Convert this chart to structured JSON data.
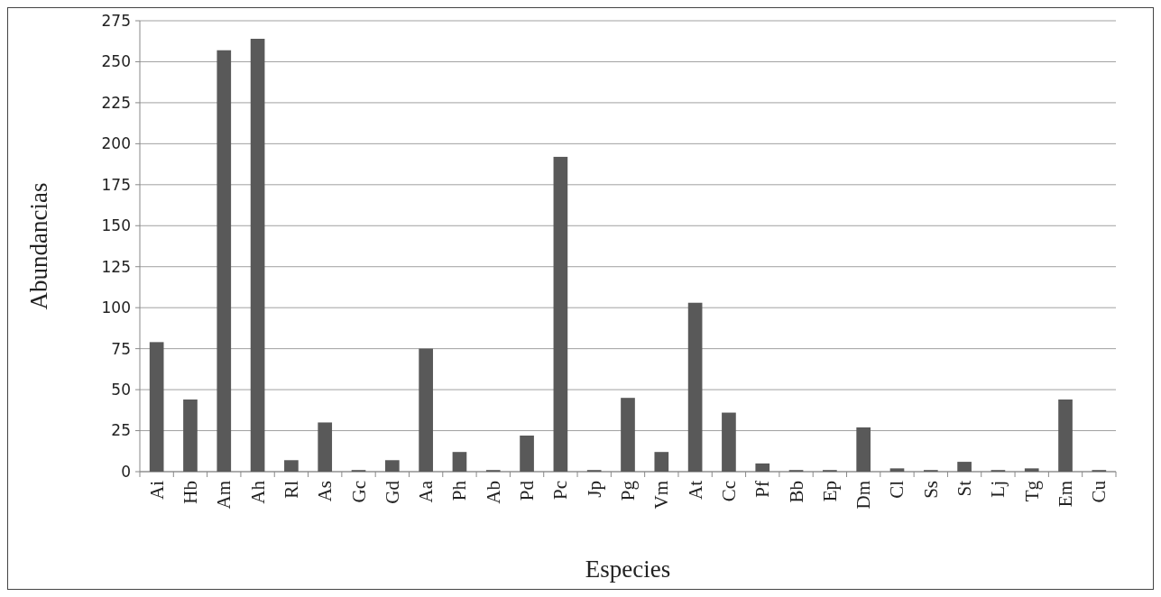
{
  "chart_data": {
    "type": "bar",
    "xlabel": "Especies",
    "ylabel": "Abundancias",
    "categories": [
      "Ai",
      "Hb",
      "Am",
      "Ah",
      "Rl",
      "As",
      "Gc",
      "Gd",
      "Aa",
      "Ph",
      "Ab",
      "Pd",
      "Pc",
      "Jp",
      "Pg",
      "Vm",
      "At",
      "Cc",
      "Pf",
      "Bb",
      "Ep",
      "Dm",
      "Cl",
      "Ss",
      "St",
      "Lj",
      "Tg",
      "Em",
      "Cu"
    ],
    "values": [
      79,
      44,
      257,
      264,
      7,
      30,
      1,
      7,
      75,
      12,
      1,
      22,
      192,
      1,
      45,
      12,
      103,
      36,
      5,
      1,
      1,
      27,
      2,
      1,
      6,
      1,
      2,
      44,
      1
    ],
    "color": "#595959",
    "ylim": [
      0,
      275
    ],
    "yticks": [
      0,
      25,
      50,
      75,
      100,
      125,
      150,
      175,
      200,
      225,
      250,
      275
    ],
    "grid": "y"
  }
}
